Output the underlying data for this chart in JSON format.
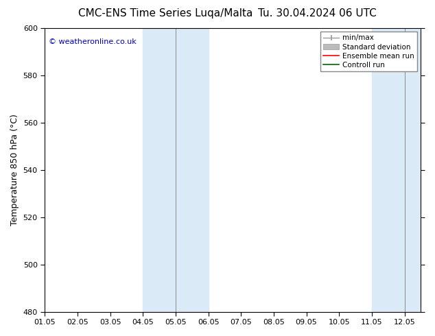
{
  "title_left": "CMC-ENS Time Series Luqa/Malta",
  "title_right": "Tu. 30.04.2024 06 UTC",
  "ylabel": "Temperature 850 hPa (°C)",
  "ylim": [
    480,
    600
  ],
  "yticks": [
    480,
    500,
    520,
    540,
    560,
    580,
    600
  ],
  "xtick_positions": [
    0,
    1,
    2,
    3,
    4,
    5,
    6,
    7,
    8,
    9,
    10,
    11
  ],
  "xtick_labels": [
    "01.05",
    "02.05",
    "03.05",
    "04.05",
    "05.05",
    "06.05",
    "07.05",
    "08.05",
    "09.05",
    "10.05",
    "11.05",
    "12.05"
  ],
  "xlim": [
    0,
    11.5
  ],
  "shaded_bands": [
    {
      "x_start": 3,
      "x_end": 5,
      "color": "#daeaf7"
    },
    {
      "x_start": 10,
      "x_end": 11.5,
      "color": "#daeaf7"
    }
  ],
  "thin_lines_in_bands": [
    4,
    11
  ],
  "bg_color": "#ffffff",
  "plot_bg_color": "#ffffff",
  "copyright_text": "© weatheronline.co.uk",
  "copyright_color": "#0000bb",
  "legend_labels": [
    "min/max",
    "Standard deviation",
    "Ensemble mean run",
    "Controll run"
  ],
  "legend_line_colors": [
    "#999999",
    "#bbbbbb",
    "#ff0000",
    "#006600"
  ],
  "axis_color": "#000000",
  "title_fontsize": 11,
  "tick_fontsize": 8,
  "ylabel_fontsize": 9,
  "border_color": "#444444"
}
